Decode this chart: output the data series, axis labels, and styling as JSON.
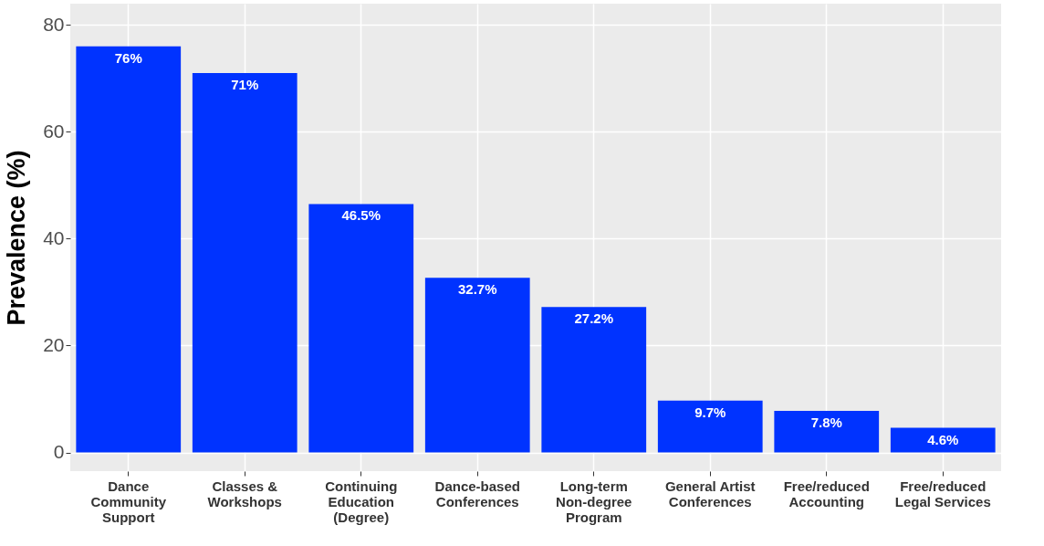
{
  "chart_data": {
    "type": "bar",
    "ylabel": "Prevalence (%)",
    "categories": [
      "Dance\nCommunity\nSupport",
      "Classes &\nWorkshops",
      "Continuing\nEducation\n(Degree)",
      "Dance-based\nConferences",
      "Long-term\nNon-degree\nProgram",
      "General Artist\nConferences",
      "Free/reduced\nAccounting",
      "Free/reduced\nLegal Services"
    ],
    "values": [
      76,
      71,
      46.5,
      32.7,
      27.2,
      9.7,
      7.8,
      4.6
    ],
    "value_labels": [
      "76%",
      "71%",
      "46.5%",
      "32.7%",
      "27.2%",
      "9.7%",
      "7.8%",
      "4.6%"
    ],
    "color": "#0033ff",
    "ylim": [
      -3.5,
      84
    ],
    "yticks": [
      0,
      20,
      40,
      60,
      80
    ],
    "grid": true
  }
}
